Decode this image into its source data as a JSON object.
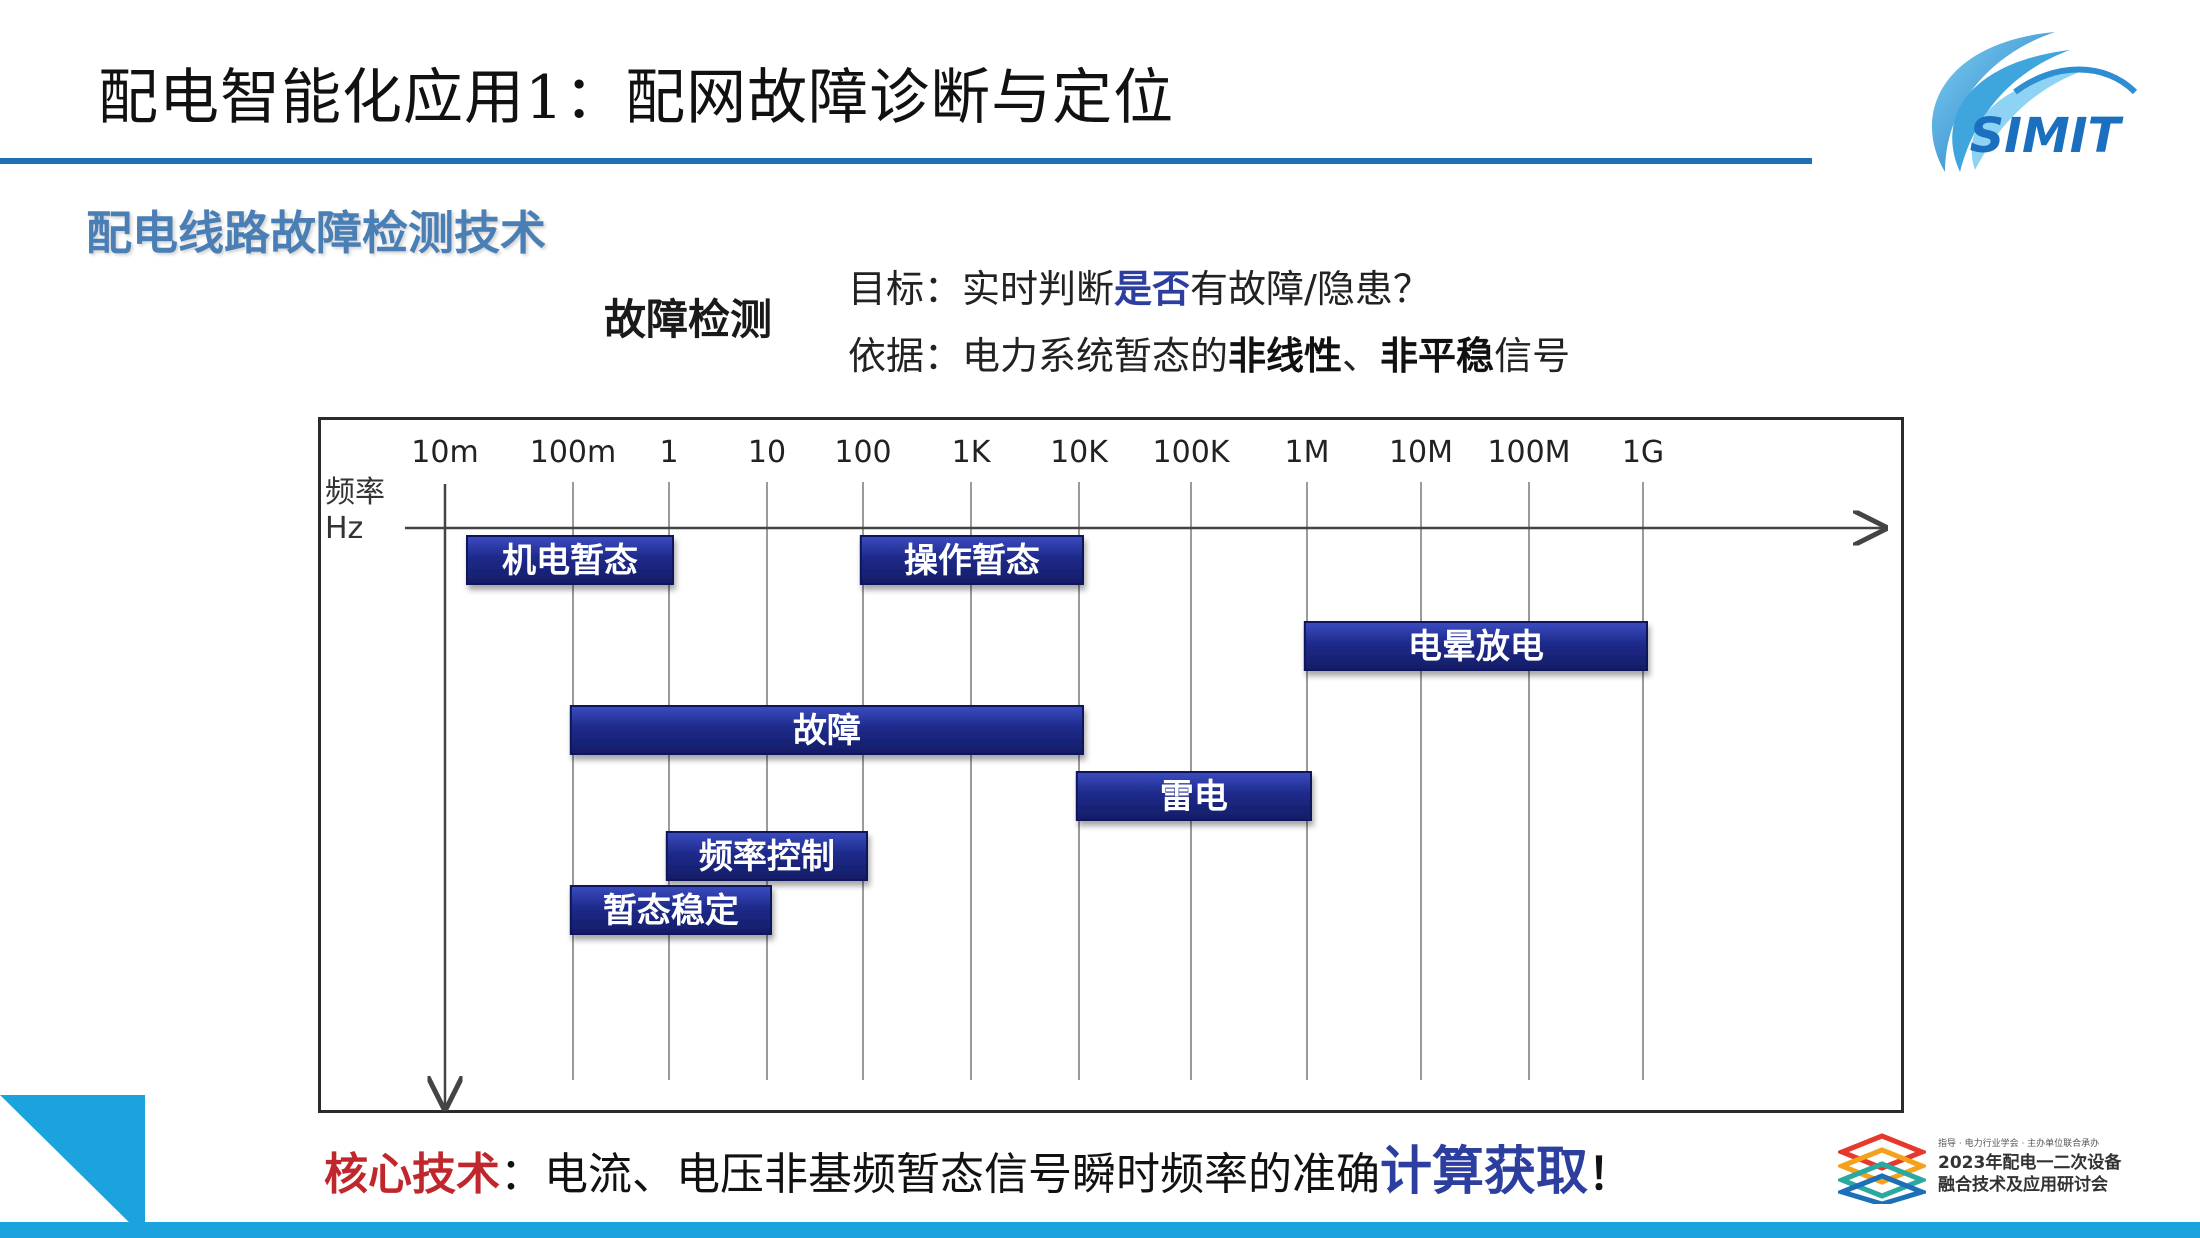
{
  "header": {
    "title": "配电智能化应用1：配网故障诊断与定位",
    "logo_text": "SIMIT"
  },
  "section": {
    "title": "配电线路故障检测技术"
  },
  "detection": {
    "label": "故障检测",
    "goal_prefix": "目标：实时判断",
    "goal_highlight": "是否",
    "goal_suffix": "有故障/隐患？",
    "basis_prefix": "依据：电力系统暂态的",
    "basis_bold1": "非线性",
    "basis_sep": "、",
    "basis_bold2": "非平稳",
    "basis_suffix": "信号"
  },
  "chart_data": {
    "type": "range-bar",
    "axis_label_line1": "频率",
    "axis_label_line2": "Hz",
    "ticks": [
      "10m",
      "100m",
      "1",
      "10",
      "100",
      "1K",
      "10K",
      "100K",
      "1M",
      "10M",
      "100M",
      "1G"
    ],
    "bars": [
      {
        "label": "机电暂态",
        "from": "10m",
        "to": "1",
        "row": 1
      },
      {
        "label": "操作暂态",
        "from": "100",
        "to": "10K",
        "row": 1
      },
      {
        "label": "电晕放电",
        "from": "1M",
        "to": "1G",
        "row": 2
      },
      {
        "label": "故障",
        "from": "100m",
        "to": "10K",
        "row": 3
      },
      {
        "label": "雷电",
        "from": "10K",
        "to": "1M",
        "row": 4
      },
      {
        "label": "频率控制",
        "from": "1",
        "to": "100",
        "row": 5
      },
      {
        "label": "暂态稳定",
        "from": "100m",
        "to": "10",
        "row": 6
      }
    ],
    "bar_color": "#1e2a8a",
    "axis_color": "#444444"
  },
  "core": {
    "label": "核心技术",
    "sep": "：",
    "text": "电流、电压非基频暂态信号瞬时频率的准确",
    "highlight": "计算获取",
    "bang": "！"
  },
  "conference": {
    "small_text": "指导 · 电力行业学会 · 主办单位联合承办",
    "title_line1": "2023年配电一二次设备",
    "title_line2": "融合技术及应用研讨会"
  },
  "colors": {
    "title_rule": "#1f6fb5",
    "section_title": "#4a7fb6",
    "accent_blue": "#1aa3dc",
    "core_red": "#c0272d"
  }
}
